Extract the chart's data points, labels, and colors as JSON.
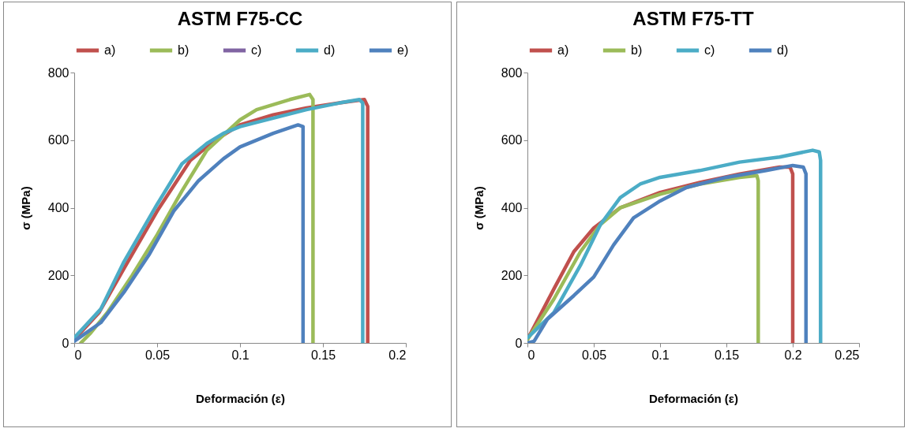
{
  "chart_data": [
    {
      "type": "line",
      "title": "ASTM F75-CC",
      "xlabel": "Deformación (ε)",
      "ylabel": "σ (MPa)",
      "xlim": [
        0,
        0.2
      ],
      "xticks": [
        0,
        0.05,
        0.1,
        0.15,
        0.2
      ],
      "ylim": [
        0,
        800
      ],
      "yticks": [
        0,
        200,
        400,
        600,
        800
      ],
      "grid": false,
      "legend": "top",
      "series": [
        {
          "name": "a)",
          "color": "#c0504d",
          "x": [
            0,
            0.015,
            0.03,
            0.05,
            0.07,
            0.085,
            0.1,
            0.12,
            0.14,
            0.16,
            0.175,
            0.177,
            0.177
          ],
          "values": [
            10,
            90,
            220,
            390,
            540,
            600,
            645,
            675,
            695,
            710,
            720,
            700,
            0
          ]
        },
        {
          "name": "b)",
          "color": "#9bbb59",
          "x": [
            0.004,
            0.01,
            0.02,
            0.035,
            0.05,
            0.065,
            0.08,
            0.1,
            0.11,
            0.13,
            0.142,
            0.144,
            0.144
          ],
          "values": [
            0,
            30,
            90,
            200,
            320,
            450,
            570,
            660,
            690,
            720,
            735,
            720,
            0
          ]
        },
        {
          "name": "c)",
          "color": "#8064a2"
        },
        {
          "name": "d)",
          "color": "#4bacc6",
          "x": [
            0,
            0.016,
            0.03,
            0.05,
            0.065,
            0.08,
            0.09,
            0.1,
            0.12,
            0.14,
            0.16,
            0.172,
            0.174,
            0.174
          ],
          "values": [
            15,
            100,
            240,
            410,
            530,
            590,
            620,
            640,
            665,
            690,
            710,
            720,
            710,
            0
          ]
        },
        {
          "name": "e)",
          "color": "#4f81bd",
          "x": [
            0,
            0.016,
            0.03,
            0.045,
            0.06,
            0.075,
            0.09,
            0.1,
            0.12,
            0.135,
            0.138,
            0.138
          ],
          "values": [
            5,
            60,
            150,
            260,
            390,
            480,
            545,
            580,
            620,
            645,
            640,
            0
          ]
        }
      ]
    },
    {
      "type": "line",
      "title": "ASTM F75-TT",
      "xlabel": "Deformación (ε)",
      "ylabel": "σ (MPa)",
      "xlim": [
        0,
        0.25
      ],
      "xticks": [
        0,
        0.05,
        0.1,
        0.15,
        0.2,
        0.25
      ],
      "ylim": [
        0,
        800
      ],
      "yticks": [
        0,
        200,
        400,
        600,
        800
      ],
      "grid": false,
      "legend": "top",
      "series": [
        {
          "name": "a)",
          "color": "#c0504d",
          "x": [
            0,
            0.02,
            0.035,
            0.05,
            0.07,
            0.1,
            0.13,
            0.16,
            0.19,
            0.198,
            0.2,
            0.2
          ],
          "values": [
            10,
            160,
            270,
            340,
            400,
            445,
            475,
            500,
            520,
            520,
            500,
            0
          ]
        },
        {
          "name": "b)",
          "color": "#9bbb59",
          "x": [
            0,
            0.02,
            0.04,
            0.055,
            0.07,
            0.1,
            0.13,
            0.16,
            0.173,
            0.174,
            0.174
          ],
          "values": [
            10,
            130,
            270,
            350,
            400,
            440,
            470,
            490,
            495,
            480,
            0
          ]
        },
        {
          "name": "c)",
          "color": "#4bacc6",
          "x": [
            0,
            0.02,
            0.04,
            0.055,
            0.07,
            0.085,
            0.1,
            0.13,
            0.16,
            0.19,
            0.215,
            0.22,
            0.221,
            0.221
          ],
          "values": [
            15,
            90,
            230,
            350,
            430,
            470,
            490,
            510,
            535,
            550,
            570,
            565,
            540,
            0
          ]
        },
        {
          "name": "d)",
          "color": "#4f81bd",
          "x": [
            0,
            0.005,
            0.015,
            0.035,
            0.05,
            0.065,
            0.08,
            0.1,
            0.12,
            0.15,
            0.18,
            0.2,
            0.208,
            0.21,
            0.21
          ],
          "values": [
            0,
            5,
            70,
            140,
            195,
            290,
            370,
            420,
            460,
            490,
            510,
            525,
            520,
            500,
            0
          ]
        }
      ]
    }
  ]
}
